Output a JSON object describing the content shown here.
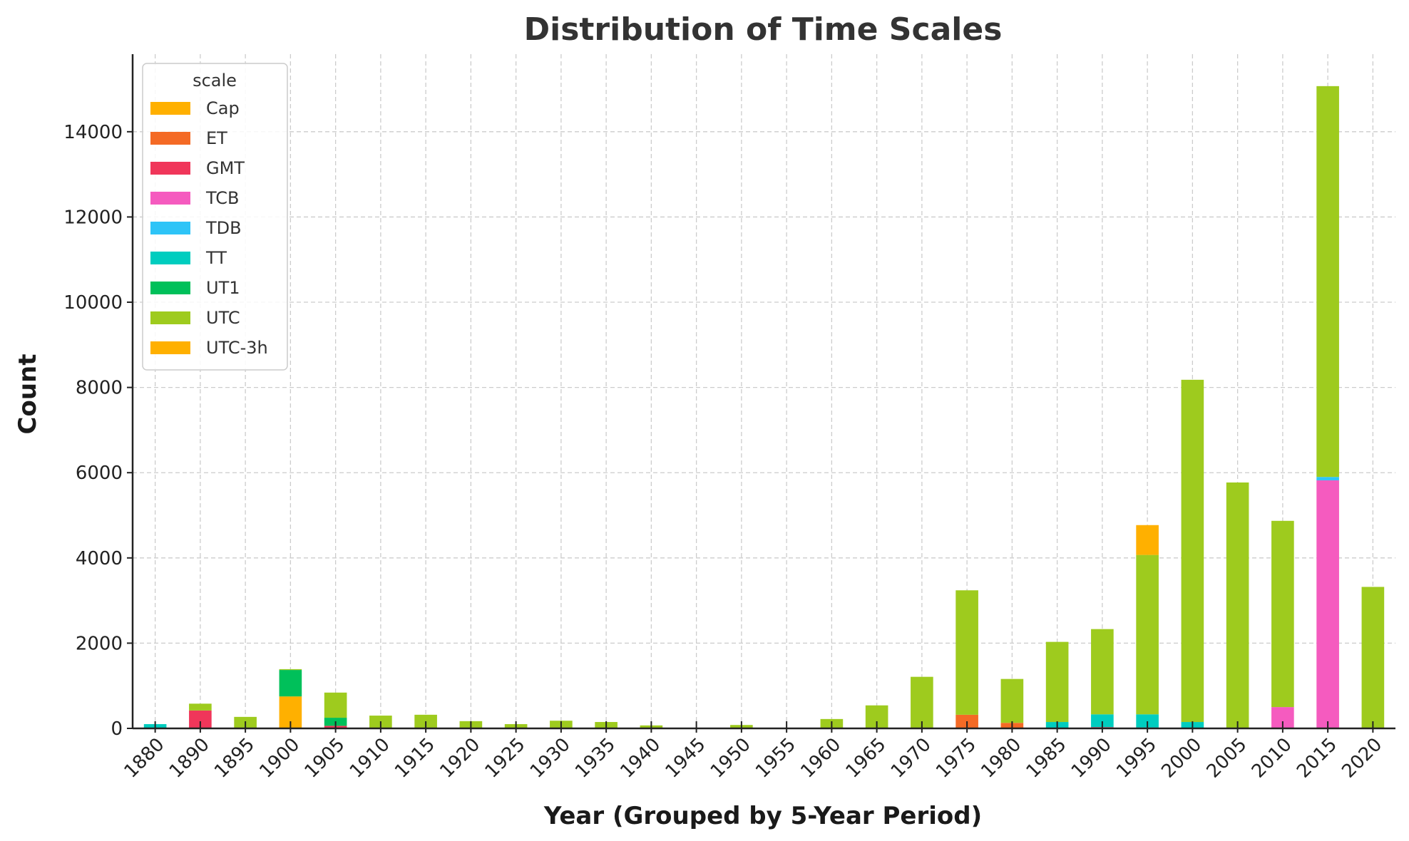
{
  "chart_data": {
    "type": "bar",
    "stacked": true,
    "title": "Distribution of Time Scales",
    "xlabel": "Year (Grouped by 5-Year Period)",
    "ylabel": "Count",
    "ylim": [
      0,
      15820
    ],
    "yticks": [
      0,
      2000,
      4000,
      6000,
      8000,
      10000,
      12000,
      14000
    ],
    "grid": true,
    "legend": {
      "title": "scale",
      "placement": "top-left"
    },
    "categories": [
      "1880",
      "1890",
      "1895",
      "1900",
      "1905",
      "1910",
      "1915",
      "1920",
      "1925",
      "1930",
      "1935",
      "1940",
      "1945",
      "1950",
      "1955",
      "1960",
      "1965",
      "1970",
      "1975",
      "1980",
      "1985",
      "1990",
      "1995",
      "2000",
      "2005",
      "2010",
      "2015",
      "2020"
    ],
    "series": [
      {
        "name": "Cap",
        "color": "#ffb000",
        "values": [
          0,
          0,
          0,
          750,
          0,
          0,
          0,
          0,
          0,
          0,
          0,
          0,
          0,
          0,
          0,
          0,
          0,
          0,
          0,
          0,
          0,
          0,
          0,
          0,
          0,
          0,
          0,
          0
        ]
      },
      {
        "name": "ET",
        "color": "#f46a25",
        "values": [
          0,
          0,
          0,
          0,
          0,
          0,
          0,
          0,
          0,
          0,
          0,
          0,
          0,
          0,
          0,
          0,
          0,
          0,
          320,
          130,
          0,
          0,
          0,
          0,
          0,
          0,
          0,
          0
        ]
      },
      {
        "name": "GMT",
        "color": "#f0365a",
        "values": [
          0,
          420,
          0,
          0,
          60,
          0,
          0,
          0,
          0,
          0,
          0,
          0,
          0,
          0,
          0,
          0,
          0,
          0,
          0,
          0,
          0,
          30,
          20,
          0,
          0,
          0,
          0,
          0
        ]
      },
      {
        "name": "TCB",
        "color": "#f55bbf",
        "values": [
          0,
          0,
          0,
          0,
          0,
          0,
          0,
          0,
          0,
          0,
          0,
          0,
          0,
          0,
          0,
          0,
          0,
          0,
          0,
          0,
          0,
          0,
          0,
          0,
          0,
          500,
          5820,
          0
        ]
      },
      {
        "name": "TDB",
        "color": "#2ec4f7",
        "values": [
          0,
          0,
          0,
          0,
          0,
          0,
          0,
          0,
          0,
          0,
          0,
          0,
          0,
          0,
          0,
          0,
          0,
          0,
          0,
          0,
          0,
          0,
          0,
          0,
          0,
          0,
          80,
          0
        ]
      },
      {
        "name": "TT",
        "color": "#00cdbf",
        "values": [
          100,
          0,
          0,
          0,
          0,
          0,
          0,
          0,
          0,
          0,
          0,
          0,
          0,
          0,
          0,
          0,
          0,
          0,
          0,
          0,
          150,
          300,
          310,
          150,
          0,
          0,
          0,
          0
        ]
      },
      {
        "name": "UT1",
        "color": "#00c05a",
        "values": [
          0,
          0,
          0,
          620,
          190,
          0,
          0,
          0,
          0,
          0,
          0,
          0,
          0,
          0,
          0,
          0,
          0,
          0,
          0,
          0,
          0,
          0,
          0,
          0,
          0,
          0,
          0,
          0
        ]
      },
      {
        "name": "UTC",
        "color": "#9ecb1e",
        "values": [
          0,
          160,
          270,
          20,
          590,
          300,
          320,
          170,
          100,
          180,
          150,
          70,
          0,
          80,
          0,
          220,
          540,
          1210,
          2920,
          1030,
          1880,
          2000,
          3740,
          8030,
          5770,
          4370,
          9170,
          3320
        ]
      },
      {
        "name": "UTC-3h",
        "color": "#ffb000",
        "values": [
          0,
          0,
          0,
          0,
          0,
          0,
          0,
          0,
          0,
          0,
          0,
          0,
          0,
          0,
          0,
          0,
          0,
          0,
          0,
          0,
          0,
          0,
          700,
          0,
          0,
          0,
          0,
          0
        ]
      }
    ]
  }
}
